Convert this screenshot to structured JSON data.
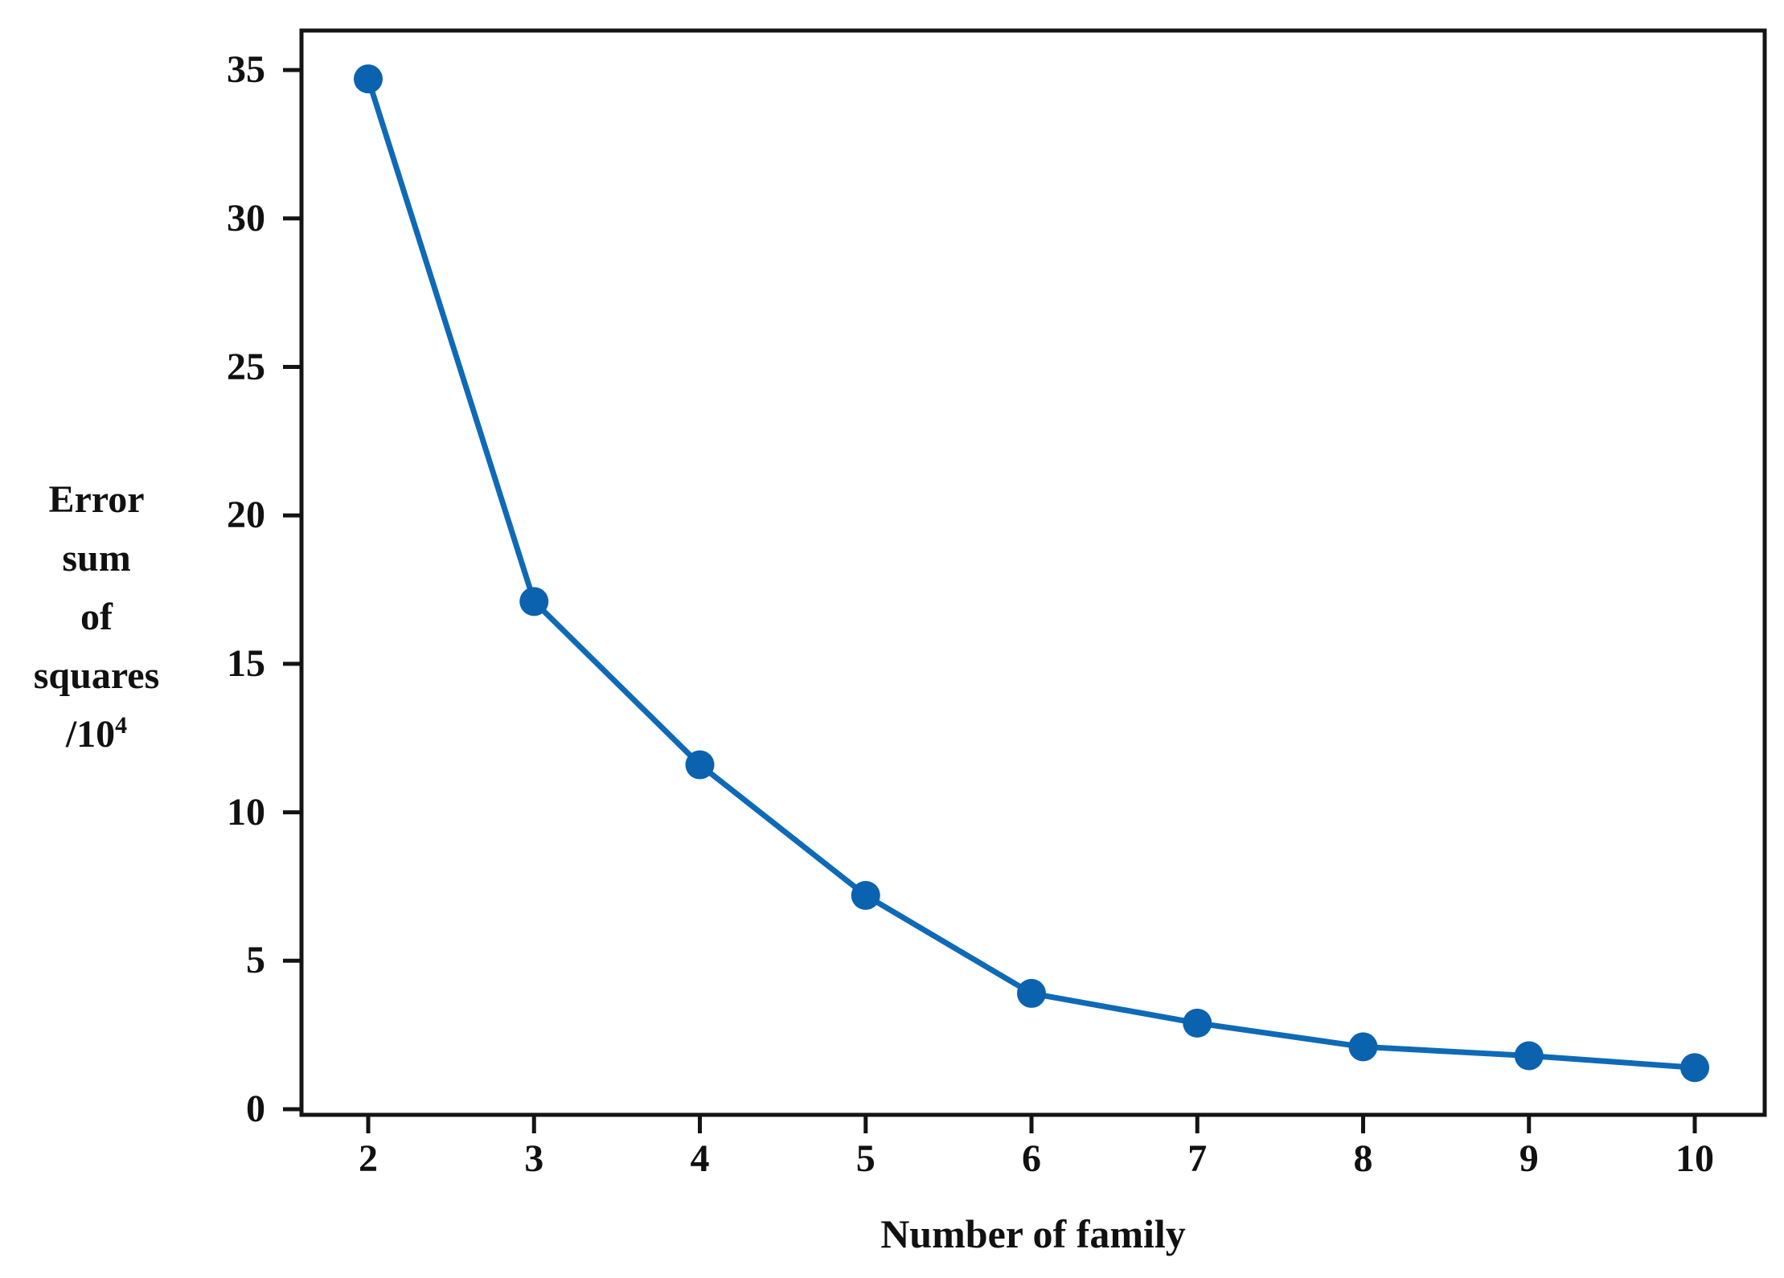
{
  "figure": {
    "background": "#ffffff"
  },
  "chart_data": {
    "type": "line",
    "x": [
      2,
      3,
      4,
      5,
      6,
      7,
      8,
      9,
      10
    ],
    "values": [
      34.7,
      17.1,
      11.6,
      7.2,
      3.9,
      2.9,
      2.1,
      1.8,
      1.4
    ],
    "title": "",
    "xlabel": "Number of family",
    "ylabel_lines": [
      "Error",
      "sum",
      "of",
      "squares"
    ],
    "ylabel_unit_base": "/10",
    "ylabel_unit_exp": "4",
    "xticks": [
      2,
      3,
      4,
      5,
      6,
      7,
      8,
      9,
      10
    ],
    "yticks": [
      0,
      5,
      10,
      15,
      20,
      25,
      30,
      35
    ],
    "xlim": [
      1.6,
      10.42
    ],
    "ylim": [
      -0.2,
      36.33
    ],
    "grid": false,
    "legend": "none",
    "marker": "circle",
    "line_color": "#0e6ab6",
    "marker_color": "#0b62ae",
    "axis_color": "#141414"
  }
}
